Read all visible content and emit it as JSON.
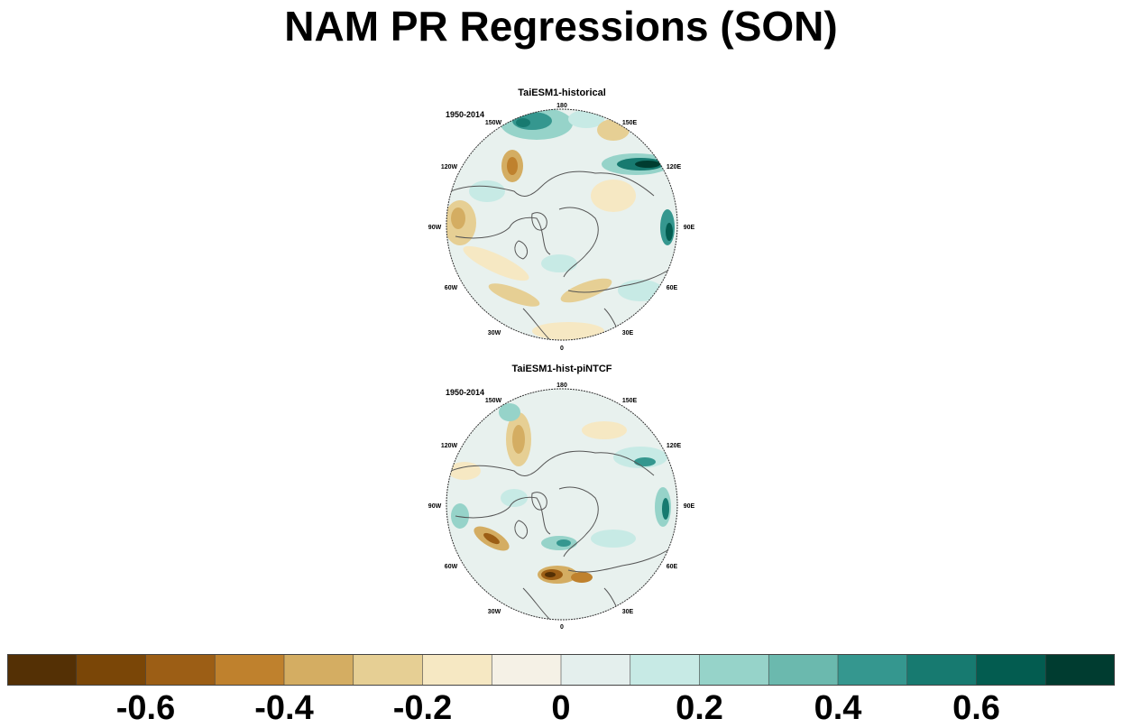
{
  "title": "NAM PR Regressions (SON)",
  "panels": [
    {
      "title": "TaiESM1-historical",
      "period": "1950-2014",
      "lon_labels": [
        "180",
        "150E",
        "120E",
        "90E",
        "60E",
        "30E",
        "0",
        "30W",
        "60W",
        "90W",
        "120W",
        "150W"
      ]
    },
    {
      "title": "TaiESM1-hist-piNTCF",
      "period": "1950-2014",
      "lon_labels": [
        "180",
        "150E",
        "120E",
        "90E",
        "60E",
        "30E",
        "0",
        "30W",
        "60W",
        "90W",
        "120W",
        "150W"
      ]
    }
  ],
  "colorbar": {
    "colors": [
      "#543005",
      "#7a4607",
      "#9c5e15",
      "#bf812d",
      "#d4ad62",
      "#e6cf94",
      "#f6e8c3",
      "#f5f1e6",
      "#e4efed",
      "#c7eae5",
      "#96d3c9",
      "#6bb9ae",
      "#35978f",
      "#177a70",
      "#035c50",
      "#003c30"
    ],
    "labels": [
      {
        "text": "-0.6",
        "index": 2
      },
      {
        "text": "-0.4",
        "index": 4
      },
      {
        "text": "-0.2",
        "index": 6
      },
      {
        "text": "0",
        "index": 8
      },
      {
        "text": "0.2",
        "index": 10
      },
      {
        "text": "0.4",
        "index": 12
      },
      {
        "text": "0.6",
        "index": 14
      }
    ]
  }
}
